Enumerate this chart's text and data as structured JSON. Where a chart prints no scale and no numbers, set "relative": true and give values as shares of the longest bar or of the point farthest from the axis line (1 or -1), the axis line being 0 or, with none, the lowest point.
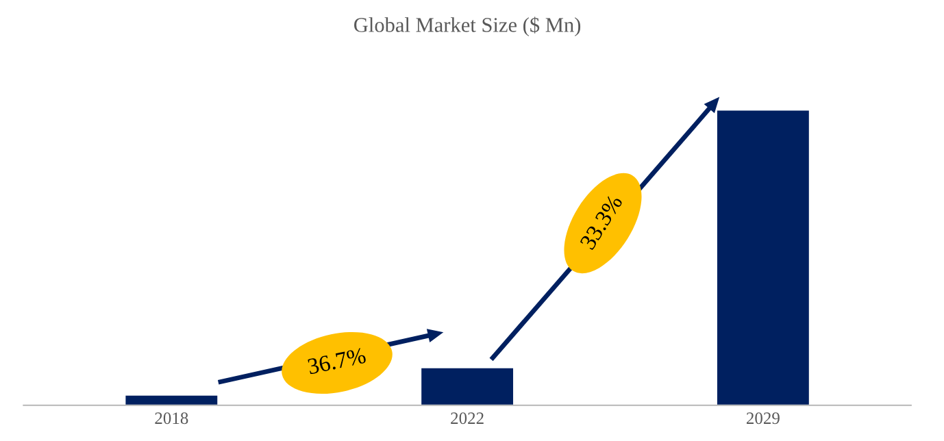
{
  "chart_data": {
    "type": "bar",
    "title": "Global Market Size ($ Mn)",
    "categories": [
      "2018",
      "2022",
      "2029"
    ],
    "values": [
      0.033,
      0.126,
      1
    ],
    "color": "#002060",
    "relative": true,
    "grid": false,
    "annotations": [
      "36.7%",
      "33.3%"
    ]
  }
}
